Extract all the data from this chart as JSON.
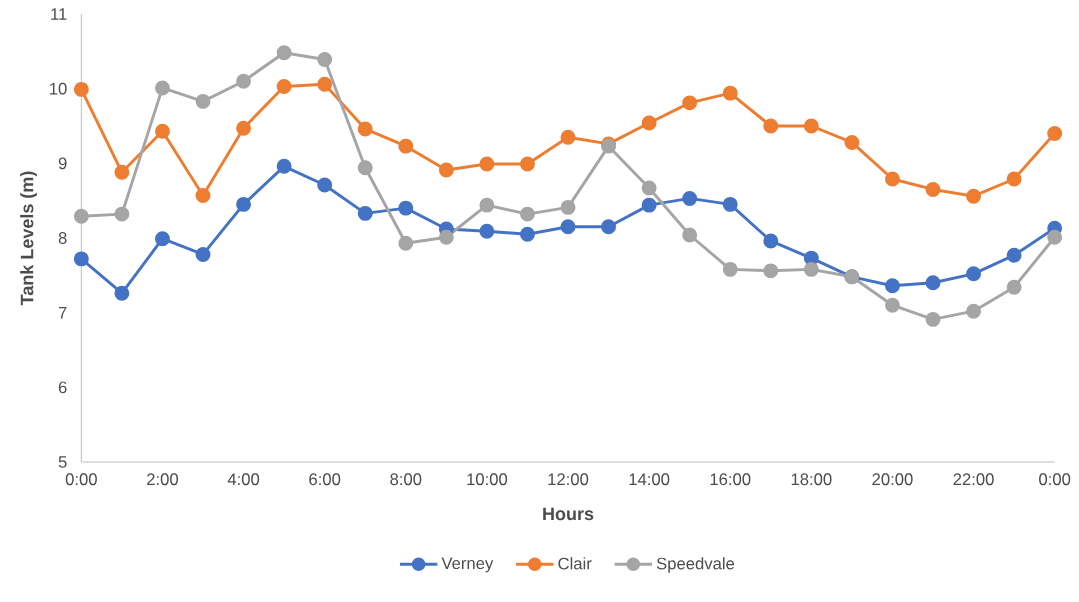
{
  "chart_data": {
    "type": "line",
    "xlabel": "Hours",
    "ylabel": "Tank Levels (m)",
    "x": [
      0,
      1,
      2,
      3,
      4,
      5,
      6,
      7,
      8,
      9,
      10,
      11,
      12,
      13,
      14,
      15,
      16,
      17,
      18,
      19,
      20,
      21,
      22,
      23,
      24
    ],
    "xlim": [
      0,
      24
    ],
    "xticks": [
      {
        "value": 0,
        "label": "0:00"
      },
      {
        "value": 2,
        "label": "2:00"
      },
      {
        "value": 4,
        "label": "4:00"
      },
      {
        "value": 6,
        "label": "6:00"
      },
      {
        "value": 8,
        "label": "8:00"
      },
      {
        "value": 10,
        "label": "10:00"
      },
      {
        "value": 12,
        "label": "12:00"
      },
      {
        "value": 14,
        "label": "14:00"
      },
      {
        "value": 16,
        "label": "16:00"
      },
      {
        "value": 18,
        "label": "18:00"
      },
      {
        "value": 20,
        "label": "20:00"
      },
      {
        "value": 22,
        "label": "22:00"
      },
      {
        "value": 24,
        "label": "0:00"
      }
    ],
    "ylim": [
      5,
      11
    ],
    "yticks": [
      5,
      6,
      7,
      8,
      9,
      10,
      11
    ],
    "series": [
      {
        "name": "Verney",
        "color": "#4472c4",
        "values": [
          7.72,
          7.26,
          7.99,
          7.78,
          8.45,
          8.96,
          8.71,
          8.33,
          8.4,
          8.12,
          8.09,
          8.05,
          8.15,
          8.15,
          8.44,
          8.53,
          8.45,
          7.96,
          7.73,
          7.48,
          7.36,
          7.4,
          7.52,
          7.77,
          8.13
        ]
      },
      {
        "name": "Clair",
        "color": "#ed7d31",
        "values": [
          9.99,
          8.88,
          9.43,
          8.57,
          9.47,
          10.03,
          10.06,
          9.46,
          9.23,
          8.91,
          8.99,
          8.99,
          9.35,
          9.26,
          9.54,
          9.81,
          9.94,
          9.5,
          9.5,
          9.28,
          8.79,
          8.65,
          8.56,
          8.79,
          9.4
        ]
      },
      {
        "name": "Speedvale",
        "color": "#a5a5a5",
        "values": [
          8.29,
          8.32,
          10.01,
          9.83,
          10.1,
          10.48,
          10.39,
          8.94,
          7.93,
          8.01,
          8.44,
          8.32,
          8.41,
          9.23,
          8.67,
          8.04,
          7.58,
          7.56,
          7.58,
          7.48,
          7.1,
          6.91,
          7.02,
          7.34,
          8.01
        ]
      }
    ],
    "grid": false,
    "legend": "bottom",
    "marker": "circle",
    "line_style": "solid"
  }
}
